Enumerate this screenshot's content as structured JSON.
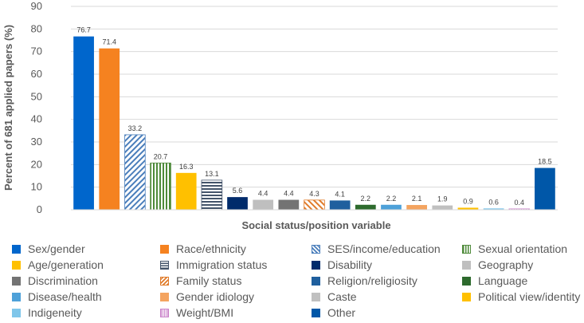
{
  "chart_data": {
    "type": "bar",
    "title": "",
    "ylabel": "Percent of 681 applied papers (%)",
    "xlabel": "Social status/position variable",
    "ylim": [
      0,
      90
    ],
    "yticks": [
      0,
      10,
      20,
      30,
      40,
      50,
      60,
      70,
      80,
      90
    ],
    "grid": true,
    "legend_position": "bottom",
    "categories": [
      "Sex/gender",
      "Race/ethnicity",
      "SES/income/education",
      "Sexual orientation",
      "Age/generation",
      "Immigration status",
      "Disability",
      "Geography",
      "Discrimination",
      "Family status",
      "Religion/religiosity",
      "Language",
      "Disease/health",
      "Gender idiology",
      "Caste",
      "Political view/identity",
      "Indigeneity",
      "Weight/BMI",
      "Other"
    ],
    "values": [
      76.7,
      71.4,
      33.2,
      20.7,
      16.3,
      13.1,
      5.6,
      4.4,
      4.4,
      4.3,
      4.1,
      2.2,
      2.2,
      2.1,
      1.9,
      0.9,
      0.6,
      0.4,
      18.5
    ],
    "value_labels": [
      "76.7",
      "71.4",
      "33.2",
      "20.7",
      "16.3",
      "13.1",
      "5.6",
      "4.4",
      "4.4",
      "4.3",
      "4.1",
      "2.2",
      "2.2",
      "2.1",
      "1.9",
      "0.9",
      "0.6",
      "0.4",
      "18.5"
    ],
    "colors": [
      "#0066cc",
      "#f58220",
      "#4a7ebb",
      "#4e8a3a",
      "#ffc000",
      "#44546a",
      "#002b6b",
      "#bfbfbf",
      "#737373",
      "#e07b2a",
      "#1f5f9e",
      "#2d6a2d",
      "#4ea1d9",
      "#f4a460",
      "#c0c0c0",
      "#ffc000",
      "#7fc6ea",
      "#cc88cc",
      "#0057a8"
    ],
    "patterns": [
      "solid",
      "solid",
      "diag",
      "vert",
      "solid",
      "horiz",
      "solid",
      "solid",
      "solid",
      "diag-orange",
      "solid",
      "solid",
      "solid",
      "solid",
      "solid",
      "solid",
      "solid",
      "vert-pink",
      "solid"
    ]
  }
}
